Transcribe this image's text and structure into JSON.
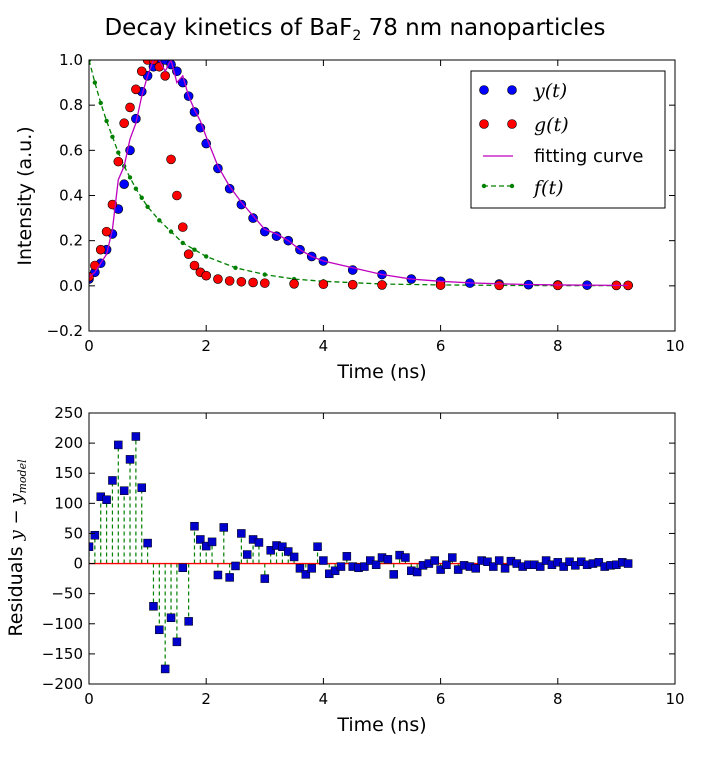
{
  "figure": {
    "title_main": "Decay kinetics of BaF",
    "title_sub": "2",
    "title_end": " 78 nm nanoparticles"
  },
  "chart_data": [
    {
      "type": "scatter",
      "xlabel": "Time (ns)",
      "ylabel": "Intensity (a.u.)",
      "xlim": [
        0,
        10
      ],
      "ylim": [
        -0.2,
        1.0
      ],
      "xticks": [
        "0",
        "2",
        "4",
        "6",
        "8",
        "10"
      ],
      "yticks": [
        "−0.2",
        "0.0",
        "0.2",
        "0.4",
        "0.6",
        "0.8",
        "1.0"
      ],
      "grid": false,
      "legend_position": "top-right",
      "legend": [
        {
          "label": "y(t)",
          "math": true,
          "style": "blue circles",
          "color": "#0000ff"
        },
        {
          "label": "g(t)",
          "math": true,
          "style": "red circles",
          "color": "#ff0000"
        },
        {
          "label": "fitting curve",
          "math": false,
          "style": "magenta line",
          "color": "#bf00bf"
        },
        {
          "label": "f(t)",
          "math": true,
          "style": "green dashed line with dots",
          "color": "#008000"
        }
      ],
      "series": [
        {
          "name": "y(t)",
          "color": "#0000ff",
          "x": [
            0.0,
            0.1,
            0.2,
            0.3,
            0.4,
            0.5,
            0.6,
            0.7,
            0.8,
            0.9,
            1.0,
            1.1,
            1.2,
            1.3,
            1.4,
            1.5,
            1.6,
            1.7,
            1.8,
            1.9,
            2.0,
            2.2,
            2.4,
            2.6,
            2.8,
            3.0,
            3.2,
            3.4,
            3.6,
            3.8,
            4.0,
            4.5,
            5.0,
            5.5,
            6.0,
            6.5,
            7.0,
            7.5,
            8.0,
            8.5,
            9.0,
            9.2
          ],
          "y": [
            0.03,
            0.06,
            0.1,
            0.16,
            0.23,
            0.34,
            0.45,
            0.6,
            0.74,
            0.86,
            0.93,
            0.97,
            1.0,
            1.0,
            0.98,
            0.95,
            0.9,
            0.84,
            0.77,
            0.7,
            0.63,
            0.52,
            0.43,
            0.36,
            0.3,
            0.24,
            0.22,
            0.2,
            0.16,
            0.13,
            0.11,
            0.07,
            0.05,
            0.03,
            0.02,
            0.012,
            0.008,
            0.005,
            0.004,
            0.003,
            0.002,
            0.002
          ]
        },
        {
          "name": "g(t)",
          "color": "#ff0000",
          "x": [
            0.0,
            0.1,
            0.2,
            0.3,
            0.4,
            0.5,
            0.6,
            0.7,
            0.8,
            0.9,
            1.0,
            1.1,
            1.2,
            1.3,
            1.4,
            1.5,
            1.6,
            1.7,
            1.8,
            1.9,
            2.0,
            2.2,
            2.4,
            2.6,
            2.8,
            3.0,
            3.5,
            4.0,
            4.5,
            5.0,
            6.0,
            7.0,
            8.0,
            9.0,
            9.2
          ],
          "y": [
            0.04,
            0.09,
            0.16,
            0.24,
            0.36,
            0.55,
            0.72,
            0.79,
            0.87,
            0.95,
            1.0,
            1.0,
            0.97,
            0.93,
            0.56,
            0.4,
            0.26,
            0.14,
            0.09,
            0.06,
            0.045,
            0.03,
            0.022,
            0.018,
            0.015,
            0.012,
            0.009,
            0.007,
            0.005,
            0.004,
            0.003,
            0.002,
            0.002,
            0.002,
            0.002
          ]
        },
        {
          "name": "fitting curve",
          "color": "#bf00bf",
          "x": [
            0.0,
            0.1,
            0.2,
            0.3,
            0.4,
            0.5,
            0.6,
            0.7,
            0.8,
            0.9,
            1.0,
            1.1,
            1.2,
            1.3,
            1.4,
            1.5,
            1.6,
            1.7,
            1.8,
            1.9,
            2.0,
            2.2,
            2.4,
            2.6,
            2.8,
            3.0,
            3.2,
            3.4,
            3.6,
            3.8,
            4.0,
            4.5,
            5.0,
            5.5,
            6.0,
            6.5,
            7.0,
            7.5,
            8.0,
            8.5,
            9.0,
            9.2
          ],
          "y": [
            0.04,
            0.06,
            0.1,
            0.14,
            0.25,
            0.47,
            0.53,
            0.65,
            0.72,
            0.84,
            0.93,
            1.0,
            1.0,
            0.95,
            1.0,
            0.9,
            0.93,
            0.84,
            0.78,
            0.73,
            0.66,
            0.53,
            0.44,
            0.37,
            0.31,
            0.25,
            0.23,
            0.2,
            0.16,
            0.13,
            0.11,
            0.08,
            0.05,
            0.03,
            0.02,
            0.013,
            0.009,
            0.006,
            0.004,
            0.003,
            0.002,
            0.002
          ]
        },
        {
          "name": "f(t)",
          "color": "#008000",
          "x": [
            0.0,
            0.1,
            0.2,
            0.3,
            0.4,
            0.5,
            0.6,
            0.7,
            0.8,
            0.9,
            1.0,
            1.2,
            1.4,
            1.6,
            1.8,
            2.0,
            2.5,
            3.0,
            3.5,
            4.0,
            5.0,
            6.0,
            7.0,
            8.0,
            9.0,
            9.2
          ],
          "y": [
            1.0,
            0.9,
            0.81,
            0.73,
            0.66,
            0.59,
            0.53,
            0.48,
            0.43,
            0.39,
            0.35,
            0.29,
            0.24,
            0.19,
            0.16,
            0.13,
            0.08,
            0.05,
            0.03,
            0.02,
            0.008,
            0.004,
            0.002,
            0.001,
            0.001,
            0.001
          ]
        }
      ]
    },
    {
      "type": "scatter",
      "xlabel": "Time (ns)",
      "ylabel_prefix": "Residuals ",
      "ylabel_math": "y − y",
      "ylabel_sub": "model",
      "xlim": [
        0,
        10
      ],
      "ylim": [
        -200,
        250
      ],
      "xticks": [
        "0",
        "2",
        "4",
        "6",
        "8",
        "10"
      ],
      "yticks": [
        "−200",
        "−150",
        "−100",
        "−50",
        "0",
        "50",
        "100",
        "150",
        "200",
        "250"
      ],
      "grid": false,
      "series": [
        {
          "name": "residuals",
          "color": "#0000cc",
          "x": [
            0.0,
            0.1,
            0.2,
            0.3,
            0.4,
            0.5,
            0.6,
            0.7,
            0.8,
            0.9,
            1.0,
            1.1,
            1.2,
            1.3,
            1.4,
            1.5,
            1.6,
            1.7,
            1.8,
            1.9,
            2.0,
            2.1,
            2.2,
            2.3,
            2.4,
            2.5,
            2.6,
            2.7,
            2.8,
            2.9,
            3.0,
            3.1,
            3.2,
            3.3,
            3.4,
            3.5,
            3.6,
            3.7,
            3.8,
            3.9,
            4.0,
            4.1,
            4.2,
            4.3,
            4.4,
            4.5,
            4.6,
            4.7,
            4.8,
            4.9,
            5.0,
            5.1,
            5.2,
            5.3,
            5.4,
            5.5,
            5.6,
            5.7,
            5.8,
            5.9,
            6.0,
            6.1,
            6.2,
            6.3,
            6.4,
            6.5,
            6.6,
            6.7,
            6.8,
            6.9,
            7.0,
            7.1,
            7.2,
            7.3,
            7.4,
            7.5,
            7.6,
            7.7,
            7.8,
            7.9,
            8.0,
            8.1,
            8.2,
            8.3,
            8.4,
            8.5,
            8.6,
            8.7,
            8.8,
            8.9,
            9.0,
            9.1,
            9.2
          ],
          "y": [
            28,
            47,
            111,
            106,
            138,
            197,
            121,
            173,
            211,
            126,
            34,
            -71,
            -110,
            -175,
            -90,
            -130,
            -7,
            -96,
            62,
            40,
            29,
            36,
            -19,
            60,
            -23,
            -4,
            50,
            15,
            40,
            35,
            -25,
            22,
            30,
            28,
            20,
            11,
            -8,
            -18,
            -8,
            28,
            5,
            -17,
            -12,
            -5,
            12,
            -5,
            -7,
            -5,
            5,
            -2,
            10,
            7,
            -18,
            14,
            10,
            -12,
            -14,
            -3,
            0,
            5,
            -10,
            -2,
            10,
            -10,
            -3,
            -5,
            -8,
            5,
            3,
            -5,
            5,
            -8,
            4,
            0,
            -5,
            -2,
            -2,
            -5,
            5,
            -2,
            2,
            -5,
            3,
            -3,
            3,
            -2,
            0,
            2,
            -5,
            -3,
            -2,
            2,
            0
          ]
        }
      ]
    }
  ]
}
